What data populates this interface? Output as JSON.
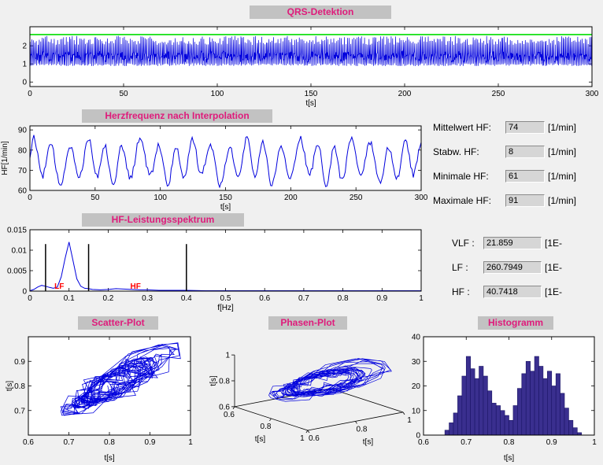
{
  "colors": {
    "background": "#f0f0f0",
    "banner_bg": "#c2c2c2",
    "banner_text": "#df1b7b",
    "plot_bg": "#ffffff",
    "signal_blue": "#0000dd",
    "threshold_green": "#00dd00",
    "band_label_red": "#ff0000",
    "hist_fill": "#3a2f8f",
    "hist_edge": "#1a1464",
    "field_bg": "#d6d6d6"
  },
  "hr_stats": {
    "rows": [
      {
        "label": "Mittelwert HF:",
        "value": "74",
        "unit": "[1/min]"
      },
      {
        "label": "Stabw. HF:",
        "value": "8",
        "unit": "[1/min]"
      },
      {
        "label": "Minimale HF:",
        "value": "61",
        "unit": "[1/min]"
      },
      {
        "label": "Maximale HF:",
        "value": "91",
        "unit": "[1/min]"
      }
    ]
  },
  "spectral_power": {
    "rows": [
      {
        "label": "VLF :",
        "value": "21.859",
        "unit": "[1E-"
      },
      {
        "label": "LF :",
        "value": "260.7949",
        "unit": "[1E-"
      },
      {
        "label": "HF :",
        "value": "40.7418",
        "unit": "[1E-"
      }
    ]
  },
  "chart_data": [
    {
      "id": "ecg",
      "type": "line",
      "title": "QRS-Detektion",
      "xlabel": "t[s]",
      "xlim": [
        0,
        300
      ],
      "ylim": [
        -0.25,
        3.05
      ],
      "xticks": [
        0,
        50,
        100,
        150,
        200,
        250,
        300
      ],
      "yticks": [
        0,
        1,
        2
      ],
      "threshold_line": 2.62,
      "description": "ECG raw signal with detected QRS spikes and green detection threshold line",
      "synth": {
        "seed": 7,
        "samples": 1500,
        "duration": 300,
        "baseline": 1.15,
        "noise": 0.5,
        "spike_min": 2.05,
        "spike_max": 2.55,
        "undershoot": 0.88,
        "beat_interval": 0.74,
        "beat_jitter": 0.12
      }
    },
    {
      "id": "hr",
      "type": "line",
      "title": "Herzfrequenz nach Interpolation",
      "xlabel": "t[s]",
      "ylabel": "HF[1/min]",
      "xlim": [
        0,
        300
      ],
      "ylim": [
        60,
        92
      ],
      "xticks": [
        0,
        50,
        100,
        150,
        200,
        250,
        300
      ],
      "yticks": [
        60,
        70,
        80,
        90
      ],
      "description": "Interpolated heart rate oscillating between about 61 and 91 bpm, mean 74",
      "synth": {
        "seed": 12,
        "points": 300,
        "mean": 74.5,
        "amp1": 9,
        "period1": 13.5,
        "amp2": 2.6,
        "period2": 41,
        "noise": 1.6,
        "min": 61,
        "max": 91
      }
    },
    {
      "id": "spectrum",
      "type": "area",
      "title": "HF-Leistungsspektrum",
      "xlabel": "f[Hz]",
      "xlim": [
        0,
        1
      ],
      "ylim": [
        0,
        0.015
      ],
      "xticks": [
        0,
        0.1,
        0.2,
        0.3,
        0.4,
        0.5,
        0.6,
        0.7,
        0.8,
        0.9,
        1
      ],
      "yticks": [
        0,
        0.005,
        0.01,
        0.015
      ],
      "f": [
        0,
        0.01,
        0.02,
        0.03,
        0.04,
        0.05,
        0.06,
        0.07,
        0.08,
        0.09,
        0.1,
        0.11,
        0.12,
        0.13,
        0.14,
        0.15,
        0.16,
        0.18,
        0.2,
        0.22,
        0.24,
        0.26,
        0.28,
        0.3,
        0.33,
        0.36,
        0.4,
        0.45,
        0.5,
        0.6,
        0.7,
        0.8,
        0.9,
        1
      ],
      "p": [
        0.0001,
        0.0004,
        0.001,
        0.0014,
        0.0012,
        0.0009,
        0.0007,
        0.001,
        0.0035,
        0.008,
        0.012,
        0.0075,
        0.003,
        0.0012,
        0.0007,
        0.0006,
        0.0004,
        0.0003,
        0.0004,
        0.0006,
        0.0005,
        0.0004,
        0.0003,
        0.0003,
        0.0002,
        0.0002,
        0.0002,
        0.0001,
        0.0001,
        0.0001,
        0.0001,
        0.0001,
        0.0001,
        0.0001
      ],
      "band_lines": {
        "x": [
          0.04,
          0.15,
          0.4
        ],
        "height": 0.0115
      },
      "band_labels": [
        {
          "text": "LF",
          "x": 0.075,
          "y": 0.0006
        },
        {
          "text": "HF",
          "x": 0.27,
          "y": 0.0006
        }
      ]
    },
    {
      "id": "scatter",
      "type": "scatter",
      "title": "Scatter-Plot",
      "xlabel": "t[s]",
      "ylabel": "t[s]",
      "xlim": [
        0.6,
        1
      ],
      "ylim": [
        0.6,
        1
      ],
      "xticks": [
        0.6,
        0.7,
        0.8,
        0.9,
        1
      ],
      "yticks": [
        0.7,
        0.8,
        0.9
      ],
      "description": "Poincare plot of successive RR intervals connected by lines",
      "synth": {
        "seed": 31,
        "jitter": 0.018,
        "source": "hr"
      }
    },
    {
      "id": "phase",
      "type": "scatter",
      "title": "Phasen-Plot",
      "axis_label": "t[s]",
      "lim": [
        0.6,
        1
      ],
      "ticks": [
        0.6,
        0.8,
        1
      ],
      "view": {
        "azimuth": -37.5,
        "elevation": 30
      },
      "description": "3D phase plot of RR interval triples (t_i, t_i+1, t_i+2)",
      "synth": {
        "seed": 31,
        "jitter": 0.018,
        "source": "hr"
      }
    },
    {
      "id": "hist",
      "type": "bar",
      "title": "Histogramm",
      "xlabel": "t[s]",
      "xlim": [
        0.6,
        1
      ],
      "ylim": [
        0,
        40
      ],
      "xticks": [
        0.6,
        0.7,
        0.8,
        0.9,
        1
      ],
      "yticks": [
        0,
        10,
        20,
        30,
        40
      ],
      "bin_start": 0.65,
      "bin_width": 0.01,
      "counts": [
        2,
        5,
        9,
        16,
        24,
        32,
        27,
        23,
        28,
        24,
        18,
        13,
        12,
        10,
        8,
        6,
        12,
        19,
        25,
        30,
        26,
        32,
        28,
        23,
        26,
        20,
        25,
        17,
        11,
        6,
        3,
        1
      ]
    }
  ]
}
